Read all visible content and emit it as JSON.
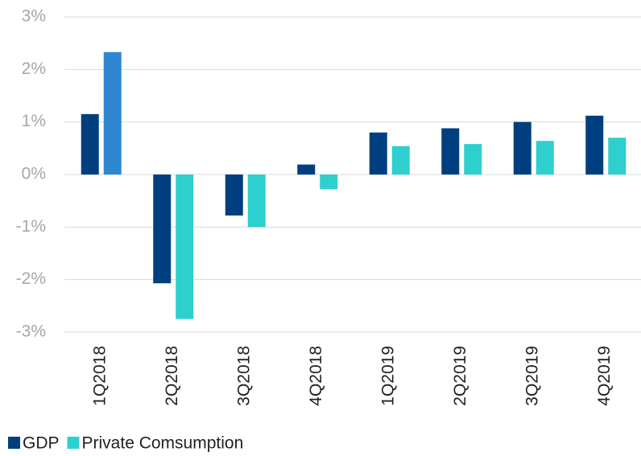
{
  "chart_data": {
    "type": "bar",
    "categories": [
      "1Q2018",
      "2Q2018",
      "3Q2018",
      "4Q2018",
      "1Q2019",
      "2Q2019",
      "3Q2019",
      "4Q2019"
    ],
    "series": [
      {
        "name": "GDP",
        "color": "#003f7f",
        "values": [
          1.15,
          -2.07,
          -0.78,
          0.19,
          0.8,
          0.88,
          1.0,
          1.12
        ]
      },
      {
        "name": "Private Comsumption",
        "color": "#2ecfcf",
        "colors": [
          "#2e86d0",
          "#2ecfcf",
          "#2ecfcf",
          "#2ecfcf",
          "#2ecfcf",
          "#2ecfcf",
          "#2ecfcf",
          "#2ecfcf"
        ],
        "values": [
          2.33,
          -2.75,
          -1.0,
          -0.28,
          0.54,
          0.58,
          0.64,
          0.7
        ]
      }
    ],
    "ylim": [
      -3,
      3
    ],
    "yticks": [
      {
        "value": -3,
        "label": "-3%"
      },
      {
        "value": -2,
        "label": "-2%"
      },
      {
        "value": -1,
        "label": "-1%"
      },
      {
        "value": 0,
        "label": "0%"
      },
      {
        "value": 1,
        "label": "1%"
      },
      {
        "value": 2,
        "label": "2%"
      },
      {
        "value": 3,
        "label": "3%"
      }
    ],
    "grid": true,
    "legend": "bottom-left"
  }
}
